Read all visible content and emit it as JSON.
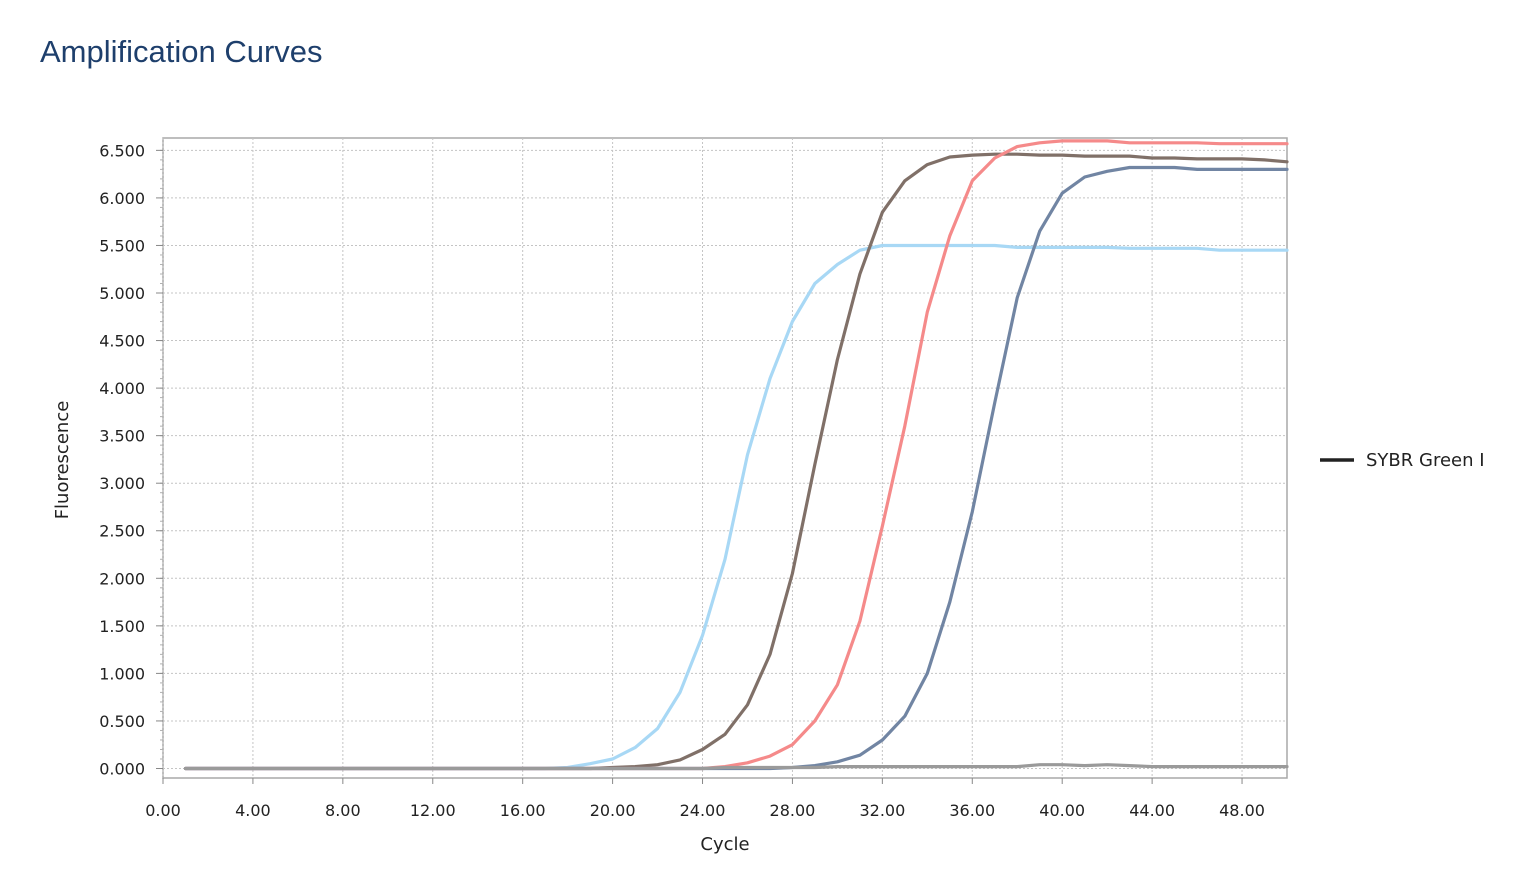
{
  "page": {
    "title": "Amplification Curves"
  },
  "chart_data": {
    "type": "line",
    "xlabel": "Cycle",
    "ylabel": "Fluorescence",
    "xlim": [
      0,
      50
    ],
    "ylim": [
      -0.1,
      6.63
    ],
    "x_ticks": [
      "0.00",
      "4.00",
      "8.00",
      "12.00",
      "16.00",
      "20.00",
      "24.00",
      "28.00",
      "32.00",
      "36.00",
      "40.00",
      "44.00",
      "48.00"
    ],
    "y_ticks": [
      "0.000",
      "0.500",
      "1.000",
      "1.500",
      "2.000",
      "2.500",
      "3.000",
      "3.500",
      "4.000",
      "4.500",
      "5.000",
      "5.500",
      "6.000",
      "6.500"
    ],
    "grid": true,
    "legend": {
      "position": "right",
      "entries": [
        {
          "label": "SYBR Green I",
          "color": "#222222"
        }
      ]
    },
    "x": [
      1,
      2,
      3,
      4,
      5,
      6,
      7,
      8,
      9,
      10,
      11,
      12,
      13,
      14,
      15,
      16,
      17,
      18,
      19,
      20,
      21,
      22,
      23,
      24,
      25,
      26,
      27,
      28,
      29,
      30,
      31,
      32,
      33,
      34,
      35,
      36,
      37,
      38,
      39,
      40,
      41,
      42,
      43,
      44,
      45,
      46,
      47,
      48,
      49,
      50
    ],
    "series": [
      {
        "color": "#a8d8f5",
        "values": [
          0,
          0,
          0,
          0,
          0,
          0,
          0,
          0,
          0,
          0,
          0,
          0,
          0,
          0,
          0,
          0,
          0,
          0.01,
          0.05,
          0.1,
          0.22,
          0.42,
          0.8,
          1.4,
          2.2,
          3.3,
          4.1,
          4.7,
          5.1,
          5.3,
          5.45,
          5.5,
          5.5,
          5.5,
          5.5,
          5.5,
          5.5,
          5.48,
          5.48,
          5.48,
          5.48,
          5.48,
          5.47,
          5.47,
          5.47,
          5.47,
          5.45,
          5.45,
          5.45,
          5.45
        ]
      },
      {
        "color": "#807068",
        "values": [
          0,
          0,
          0,
          0,
          0,
          0,
          0,
          0,
          0,
          0,
          0,
          0,
          0,
          0,
          0,
          0,
          0,
          0,
          0,
          0.01,
          0.02,
          0.04,
          0.09,
          0.2,
          0.36,
          0.67,
          1.2,
          2.05,
          3.2,
          4.3,
          5.2,
          5.85,
          6.18,
          6.35,
          6.43,
          6.45,
          6.46,
          6.46,
          6.45,
          6.45,
          6.44,
          6.44,
          6.44,
          6.42,
          6.42,
          6.41,
          6.41,
          6.41,
          6.4,
          6.38
        ]
      },
      {
        "color": "#f58a8a",
        "values": [
          0,
          0,
          0,
          0,
          0,
          0,
          0,
          0,
          0,
          0,
          0,
          0,
          0,
          0,
          0,
          0,
          0,
          0,
          0,
          0,
          0,
          0,
          0,
          0,
          0.02,
          0.06,
          0.13,
          0.25,
          0.5,
          0.88,
          1.55,
          2.55,
          3.6,
          4.8,
          5.6,
          6.18,
          6.42,
          6.54,
          6.58,
          6.6,
          6.6,
          6.6,
          6.58,
          6.58,
          6.58,
          6.58,
          6.57,
          6.57,
          6.57,
          6.57
        ]
      },
      {
        "color": "#7185a3",
        "values": [
          0,
          0,
          0,
          0,
          0,
          0,
          0,
          0,
          0,
          0,
          0,
          0,
          0,
          0,
          0,
          0,
          0,
          0,
          0,
          0,
          0,
          0,
          0,
          0,
          0,
          0,
          0,
          0.01,
          0.03,
          0.07,
          0.14,
          0.3,
          0.55,
          1.0,
          1.75,
          2.7,
          3.85,
          4.95,
          5.65,
          6.05,
          6.22,
          6.28,
          6.32,
          6.32,
          6.32,
          6.3,
          6.3,
          6.3,
          6.3,
          6.3
        ]
      },
      {
        "color": "#9a9a9a",
        "values": [
          0,
          0,
          0,
          0,
          0,
          0,
          0,
          0,
          0,
          0,
          0,
          0,
          0,
          0,
          0,
          0,
          0,
          0,
          0,
          0,
          0,
          0,
          0,
          0,
          0.01,
          0.01,
          0.01,
          0.01,
          0.01,
          0.02,
          0.02,
          0.02,
          0.02,
          0.02,
          0.02,
          0.02,
          0.02,
          0.02,
          0.04,
          0.04,
          0.03,
          0.04,
          0.03,
          0.02,
          0.02,
          0.02,
          0.02,
          0.02,
          0.02,
          0.02
        ]
      }
    ]
  }
}
